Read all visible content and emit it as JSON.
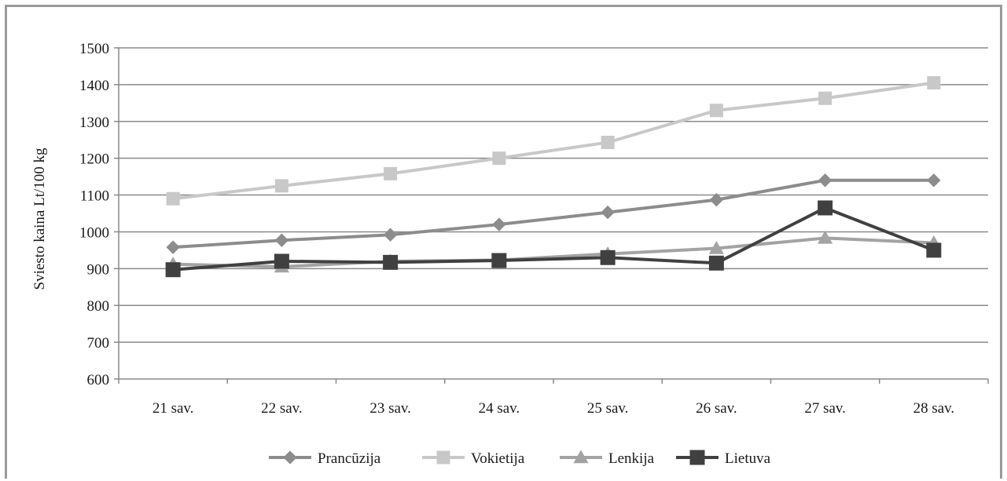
{
  "chart_data": {
    "type": "line",
    "title": "",
    "xlabel": "",
    "ylabel": "Sviesto kaina Lt/100 kg",
    "categories": [
      "21 sav.",
      "22 sav.",
      "23 sav.",
      "24 sav.",
      "25 sav.",
      "26 sav.",
      "27 sav.",
      "28 sav."
    ],
    "ylim": [
      600,
      1500
    ],
    "yticks": [
      600,
      700,
      800,
      900,
      1000,
      1100,
      1200,
      1300,
      1400,
      1500
    ],
    "grid": true,
    "legend_position": "bottom",
    "series": [
      {
        "name": "Prancūzija",
        "marker": "diamond",
        "color": "#8c8c8c",
        "values": [
          958,
          977,
          992,
          1020,
          1053,
          1087,
          1140,
          1140
        ]
      },
      {
        "name": "Vokietija",
        "marker": "square",
        "color": "#c8c8c8",
        "values": [
          1090,
          1125,
          1158,
          1200,
          1243,
          1330,
          1363,
          1405
        ]
      },
      {
        "name": "Lenkija",
        "marker": "triangle",
        "color": "#a3a3a3",
        "values": [
          912,
          905,
          920,
          923,
          940,
          955,
          983,
          970
        ]
      },
      {
        "name": "Lietuva",
        "marker": "square",
        "color": "#404040",
        "values": [
          897,
          920,
          917,
          922,
          930,
          915,
          1065,
          950
        ]
      }
    ]
  }
}
